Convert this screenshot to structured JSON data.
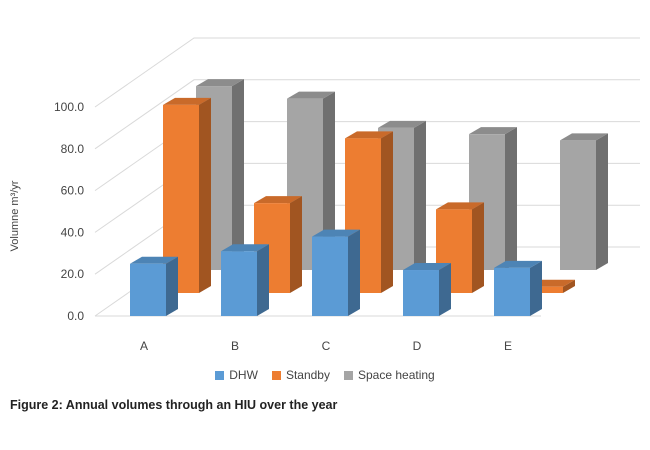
{
  "chart_data": {
    "type": "bar",
    "style": "3d-clustered-depth",
    "categories": [
      "A",
      "B",
      "C",
      "D",
      "E"
    ],
    "series": [
      {
        "name": "DHW",
        "color": "#5b9bd5",
        "values": [
          25,
          31,
          38,
          22,
          23
        ]
      },
      {
        "name": "Standby",
        "color": "#ed7d31",
        "values": [
          90,
          43,
          74,
          40,
          3
        ]
      },
      {
        "name": "Space heating",
        "color": "#a5a5a5",
        "values": [
          88,
          82,
          68,
          65,
          62
        ]
      }
    ],
    "ylabel": "Volumne m³/yr",
    "ylim": [
      0,
      100
    ],
    "yticks": [
      "0.0",
      "20.0",
      "40.0",
      "60.0",
      "80.0",
      "100.0"
    ],
    "grid": true,
    "legend_position": "bottom"
  },
  "caption": "Figure 2: Annual volumes through an HIU over the year"
}
